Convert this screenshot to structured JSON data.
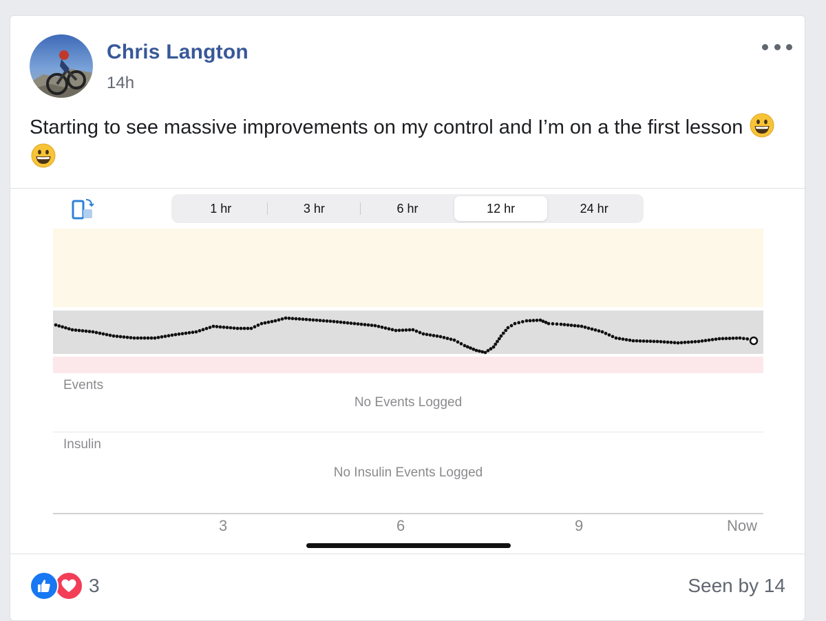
{
  "post": {
    "author": "Chris Langton",
    "timestamp": "14h",
    "text": "Starting to see massive improvements on my control and I’m on a the first lesson"
  },
  "graph": {
    "range_tabs": [
      "1 hr",
      "3 hr",
      "6 hr",
      "12 hr",
      "24 hr"
    ],
    "active_tab": "12 hr",
    "events_label": "Events",
    "events_empty": "No Events Logged",
    "insulin_label": "Insulin",
    "insulin_empty": "No Insulin Events Logged",
    "x_ticks": [
      "3",
      "6",
      "9",
      "Now"
    ]
  },
  "footer": {
    "reaction_count": "3",
    "seen_by": "Seen by 14"
  },
  "colors": {
    "author": "#385898",
    "high_zone": "#fdf8e7",
    "target_zone": "#dedede",
    "low_zone": "#fce8ea",
    "like": "#1877f2",
    "love": "#f33e58"
  }
}
